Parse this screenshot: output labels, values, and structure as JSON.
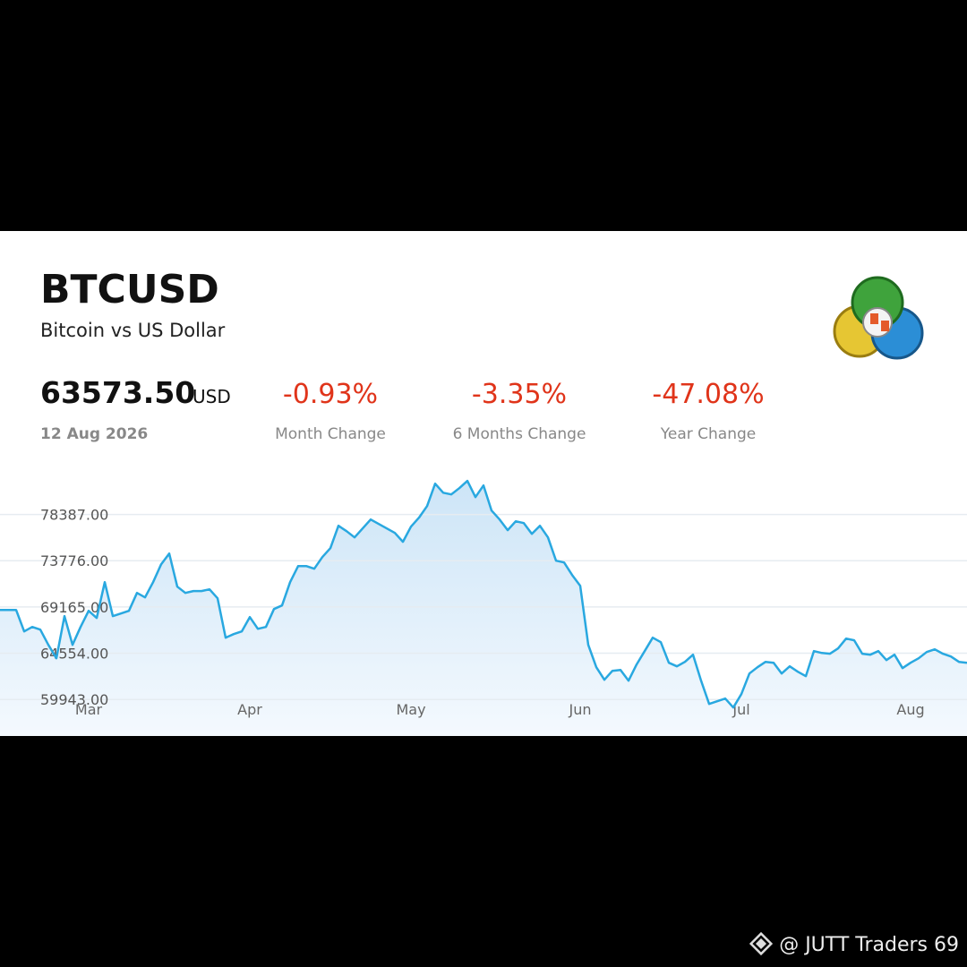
{
  "header": {
    "symbol": "BTCUSD",
    "name": "Bitcoin vs US Dollar"
  },
  "quote": {
    "price": "63573.50",
    "currency": "USD",
    "date": "12 Aug 2026"
  },
  "changes": [
    {
      "value": "-0.93%",
      "label": "Month Change"
    },
    {
      "value": "-3.35%",
      "label": "6 Months Change"
    },
    {
      "value": "-47.08%",
      "label": "Year Change"
    }
  ],
  "chart_data": {
    "type": "line",
    "color": "#29a8e0",
    "grid": true,
    "ylim": [
      56300,
      84600
    ],
    "yticks": [
      {
        "value": 59943,
        "label": "59943.00"
      },
      {
        "value": 64554,
        "label": "64554.00"
      },
      {
        "value": 69165,
        "label": "69165.00"
      },
      {
        "value": 73776,
        "label": "73776.00"
      },
      {
        "value": 78387,
        "label": "78387.00"
      }
    ],
    "categories": [
      null,
      null,
      null,
      null,
      null,
      null,
      null,
      null,
      null,
      null,
      null,
      "Mar",
      null,
      null,
      null,
      null,
      null,
      null,
      null,
      null,
      null,
      null,
      null,
      null,
      null,
      null,
      null,
      null,
      null,
      null,
      null,
      "Apr",
      null,
      null,
      null,
      null,
      null,
      null,
      null,
      null,
      null,
      null,
      null,
      null,
      null,
      null,
      null,
      null,
      null,
      null,
      null,
      "May",
      null,
      null,
      null,
      null,
      null,
      null,
      null,
      null,
      null,
      null,
      null,
      null,
      null,
      null,
      null,
      null,
      null,
      null,
      null,
      null,
      "Jun",
      null,
      null,
      null,
      null,
      null,
      null,
      null,
      null,
      null,
      null,
      null,
      null,
      null,
      null,
      null,
      null,
      null,
      null,
      null,
      "Jul",
      null,
      null,
      null,
      null,
      null,
      null,
      null,
      null,
      null,
      null,
      null,
      null,
      null,
      null,
      null,
      null,
      null,
      null,
      null,
      null,
      "Aug",
      null,
      null,
      null,
      null,
      null,
      null,
      null
    ],
    "values": [
      68870,
      68870,
      68870,
      66730,
      67170,
      66910,
      65390,
      64050,
      68250,
      65390,
      67170,
      68780,
      68070,
      71640,
      68250,
      68510,
      68780,
      70570,
      70120,
      71640,
      73420,
      74490,
      71190,
      70570,
      70750,
      70750,
      70920,
      70030,
      66100,
      66460,
      66730,
      68160,
      66990,
      67170,
      68960,
      69320,
      71640,
      73240,
      73240,
      72980,
      74140,
      75030,
      77260,
      76730,
      76100,
      76990,
      77890,
      77440,
      76990,
      76550,
      75660,
      77170,
      78070,
      79230,
      81460,
      80560,
      80390,
      81010,
      81730,
      80120,
      81280,
      78780,
      77890,
      76820,
      77710,
      77530,
      76460,
      77260,
      76100,
      73780,
      73600,
      72350,
      71280,
      65390,
      63160,
      61910,
      62800,
      62890,
      61820,
      63430,
      64760,
      66100,
      65660,
      63600,
      63250,
      63690,
      64410,
      61820,
      59500,
      59760,
      60030,
      59140,
      60480,
      62530,
      63160,
      63690,
      63600,
      62530,
      63250,
      62710,
      62260,
      64760,
      64580,
      64500,
      65030,
      66010,
      65840,
      64500,
      64410,
      64760,
      63870,
      64410,
      63070,
      63600,
      64050,
      64670,
      64940,
      64500,
      64230,
      63690,
      63600
    ]
  },
  "watermark": "@ JUTT Traders 69"
}
